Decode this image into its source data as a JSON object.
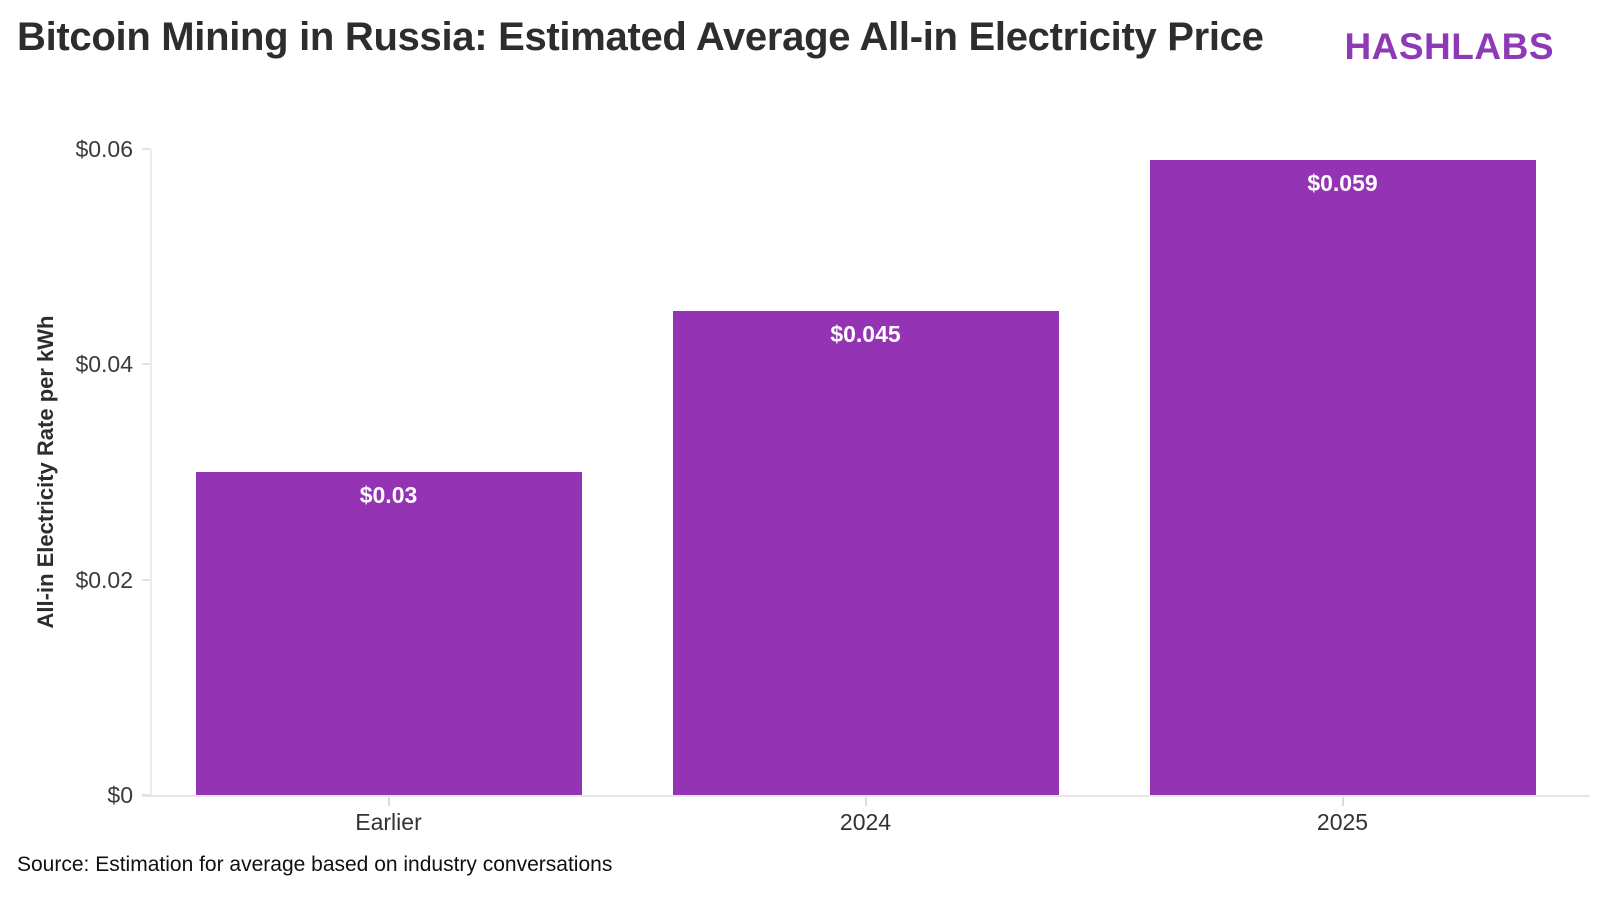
{
  "header": {
    "title": "Bitcoin Mining in Russia: Estimated Average All-in Electricity Price",
    "logo": "HASHLABS"
  },
  "footer": {
    "source": "Source: Estimation for average based on industry conversations"
  },
  "colors": {
    "bar": "#9434b4",
    "logo": "#8e3ab6",
    "title_text": "#2d2d2d",
    "bar_label_text": "#ffffff",
    "axis_line": "#e7e7e8",
    "tick_text": "#3a3a3a"
  },
  "chart_data": {
    "type": "bar",
    "title": "Bitcoin Mining in Russia: Estimated Average All-in Electricity Price",
    "categories": [
      "Earlier",
      "2024",
      "2025"
    ],
    "values": [
      0.03,
      0.045,
      0.059
    ],
    "bar_labels": [
      "$0.03",
      "$0.045",
      "$0.059"
    ],
    "xlabel": "",
    "ylabel": "All-in Electricity Rate per kWh",
    "ylim": [
      0,
      0.06
    ],
    "yticks": [
      {
        "value": 0,
        "label": "$0"
      },
      {
        "value": 0.02,
        "label": "$0.02"
      },
      {
        "value": 0.04,
        "label": "$0.04"
      },
      {
        "value": 0.06,
        "label": "$0.06"
      }
    ],
    "grid": false,
    "legend": false,
    "source": "Source: Estimation for average based on industry conversations"
  }
}
